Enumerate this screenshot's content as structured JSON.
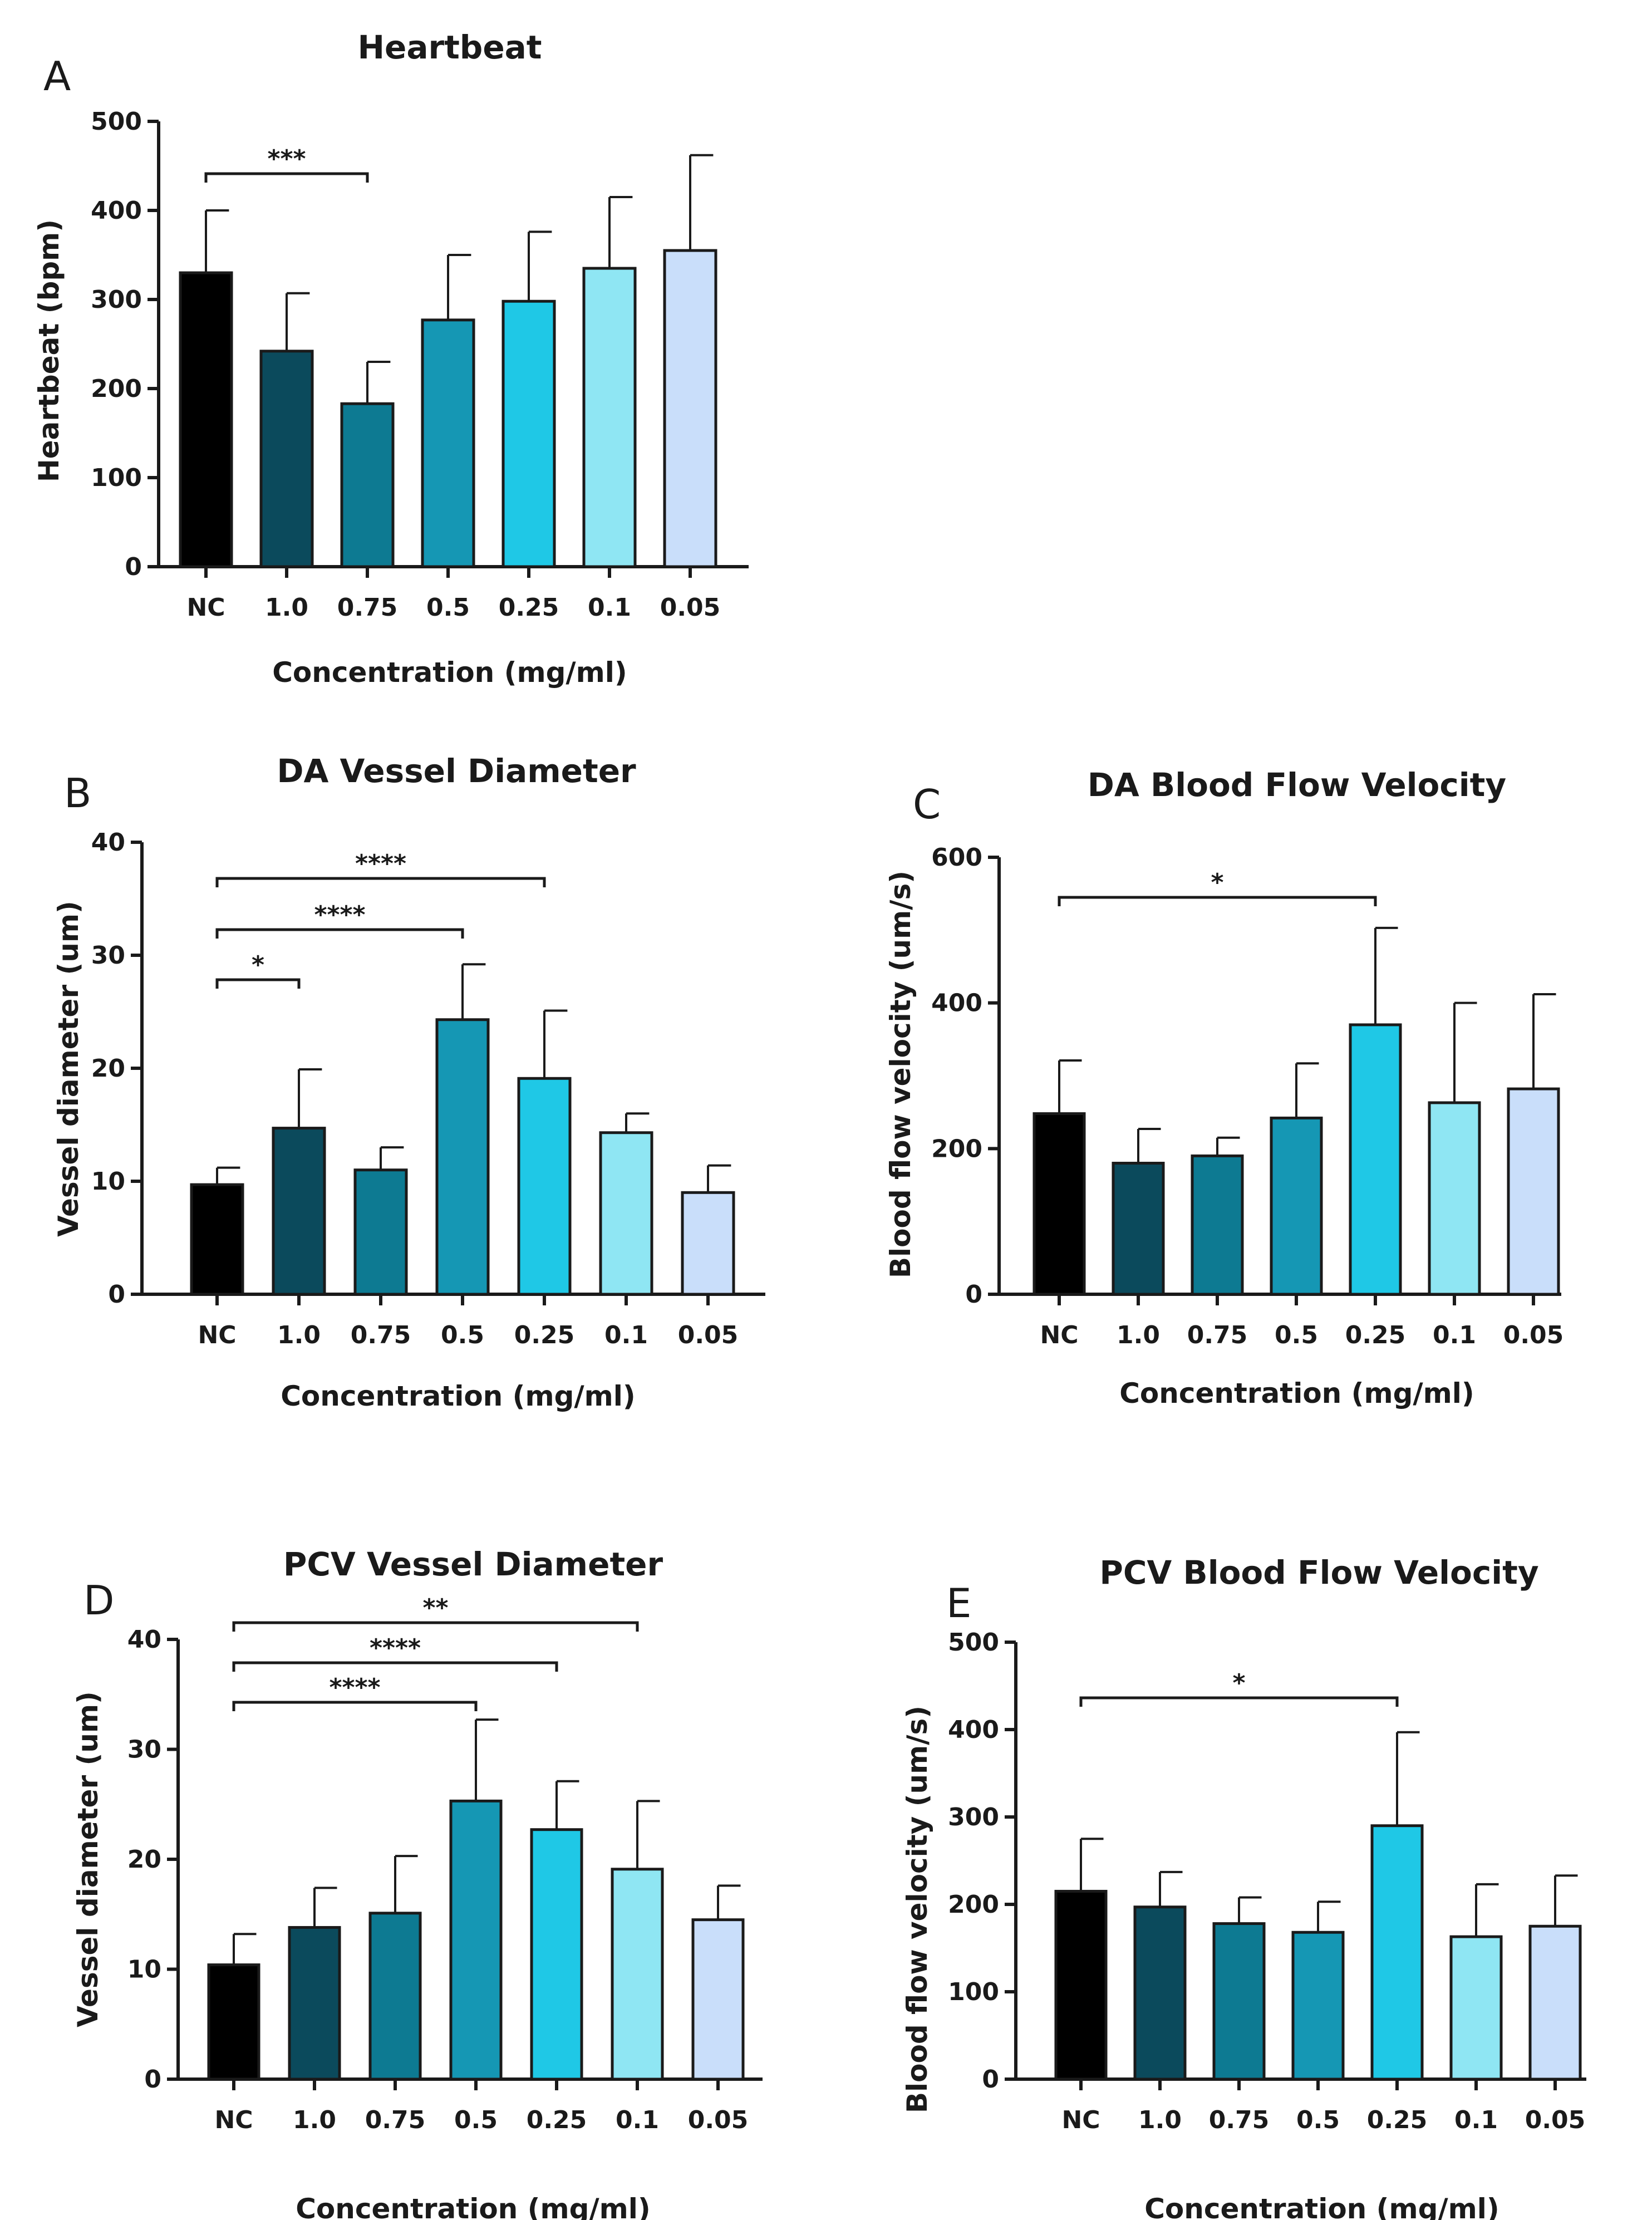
{
  "figure": {
    "bar_colors": [
      "#000000",
      "#0b4a5c",
      "#0d7a92",
      "#1597b4",
      "#1fc8e6",
      "#8fe6f3",
      "#c9defa"
    ]
  },
  "chart_data": [
    {
      "id": "A",
      "type": "bar",
      "panel_label": "A",
      "title": "Heartbeat",
      "xlabel": "Concentration (mg/ml)",
      "ylabel": "Heartbeat (bpm)",
      "categories": [
        "NC",
        "1.0",
        "0.75",
        "0.5",
        "0.25",
        "0.1",
        "0.05"
      ],
      "values": [
        330,
        242,
        183,
        277,
        298,
        335,
        355
      ],
      "errors": [
        70,
        65,
        47,
        73,
        78,
        80,
        107
      ],
      "ylim": [
        0,
        500
      ],
      "yticks": [
        "0",
        "100",
        "200",
        "300",
        "400",
        "500"
      ],
      "significance": [
        {
          "from": 0,
          "to": 2,
          "label": "***"
        }
      ]
    },
    {
      "id": "B",
      "type": "bar",
      "panel_label": "B",
      "title": "DA Vessel Diameter",
      "xlabel": "Concentration (mg/ml)",
      "ylabel": "Vessel diameter (um)",
      "categories": [
        "NC",
        "1.0",
        "0.75",
        "0.5",
        "0.25",
        "0.1",
        "0.05"
      ],
      "values": [
        9.7,
        14.7,
        11.0,
        24.3,
        19.1,
        14.3,
        9.0
      ],
      "errors": [
        1.5,
        5.2,
        2.0,
        4.9,
        6.0,
        1.7,
        2.4
      ],
      "ylim": [
        0,
        40
      ],
      "yticks": [
        "0",
        "10",
        "20",
        "30",
        "40"
      ],
      "significance": [
        {
          "from": 0,
          "to": 1,
          "label": "*"
        },
        {
          "from": 0,
          "to": 3,
          "label": "****"
        },
        {
          "from": 0,
          "to": 4,
          "label": "****"
        }
      ]
    },
    {
      "id": "C",
      "type": "bar",
      "panel_label": "C",
      "title": "DA Blood Flow Velocity",
      "xlabel": "Concentration (mg/ml)",
      "ylabel": "Blood flow velocity (um/s)",
      "categories": [
        "NC",
        "1.0",
        "0.75",
        "0.5",
        "0.25",
        "0.1",
        "0.05"
      ],
      "values": [
        248,
        180,
        190,
        242,
        370,
        263,
        282
      ],
      "errors": [
        73,
        47,
        25,
        75,
        133,
        137,
        130
      ],
      "ylim": [
        0,
        600
      ],
      "yticks": [
        "0",
        "200",
        "400",
        "600"
      ],
      "significance": [
        {
          "from": 0,
          "to": 4,
          "label": "*"
        }
      ]
    },
    {
      "id": "D",
      "type": "bar",
      "panel_label": "D",
      "title": "PCV Vessel Diameter",
      "xlabel": "Concentration (mg/ml)",
      "ylabel": "Vessel diameter (um)",
      "categories": [
        "NC",
        "1.0",
        "0.75",
        "0.5",
        "0.25",
        "0.1",
        "0.05"
      ],
      "values": [
        10.4,
        13.8,
        15.1,
        25.3,
        22.7,
        19.1,
        14.5
      ],
      "errors": [
        2.8,
        3.6,
        5.2,
        7.4,
        4.4,
        6.2,
        3.1
      ],
      "ylim": [
        0,
        40
      ],
      "yticks": [
        "0",
        "10",
        "20",
        "30",
        "40"
      ],
      "significance": [
        {
          "from": 0,
          "to": 3,
          "label": "****"
        },
        {
          "from": 0,
          "to": 4,
          "label": "****"
        },
        {
          "from": 0,
          "to": 5,
          "label": "**"
        }
      ]
    },
    {
      "id": "E",
      "type": "bar",
      "panel_label": "E",
      "title": "PCV Blood Flow Velocity",
      "xlabel": "Concentration (mg/ml)",
      "ylabel": "Blood flow velocity (um/s)",
      "categories": [
        "NC",
        "1.0",
        "0.75",
        "0.5",
        "0.25",
        "0.1",
        "0.05"
      ],
      "values": [
        215,
        197,
        178,
        168,
        290,
        163,
        175
      ],
      "errors": [
        60,
        40,
        30,
        35,
        107,
        60,
        58
      ],
      "ylim": [
        0,
        500
      ],
      "yticks": [
        "0",
        "100",
        "200",
        "300",
        "400",
        "500"
      ],
      "significance": [
        {
          "from": 0,
          "to": 4,
          "label": "*"
        }
      ]
    }
  ]
}
